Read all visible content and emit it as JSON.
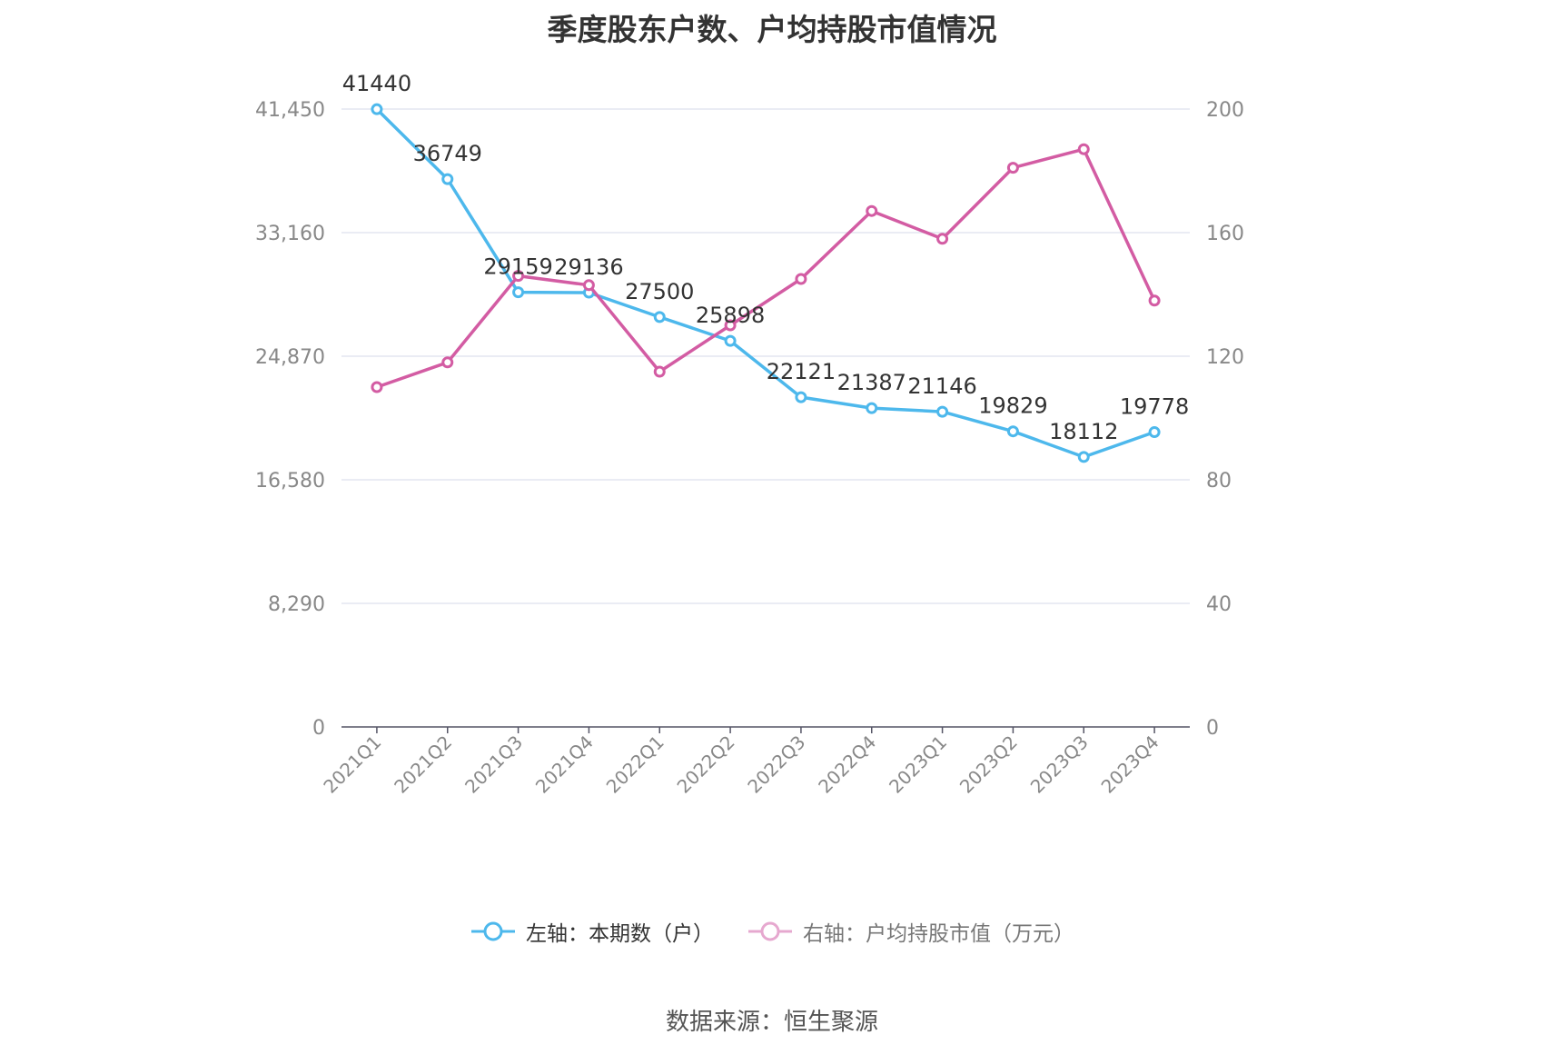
{
  "chart_data": {
    "type": "line",
    "title": "季度股东户数、户均持股市值情况",
    "categories": [
      "2021Q1",
      "2021Q2",
      "2021Q3",
      "2021Q4",
      "2022Q1",
      "2022Q2",
      "2022Q3",
      "2022Q4",
      "2023Q1",
      "2023Q2",
      "2023Q3",
      "2023Q4"
    ],
    "left_axis": {
      "ticks": [
        "0",
        "8,290",
        "16,580",
        "24,870",
        "33,160",
        "41,450"
      ],
      "ylim": [
        0,
        41450
      ]
    },
    "right_axis": {
      "ticks": [
        "0",
        "40",
        "80",
        "120",
        "160",
        "200"
      ],
      "ylim": [
        0,
        200
      ]
    },
    "series": [
      {
        "name": "左轴：本期数（户）",
        "axis": "left",
        "color": "#4db8ec",
        "values": [
          41440,
          36749,
          29159,
          29136,
          27500,
          25898,
          22121,
          21387,
          21146,
          19829,
          18112,
          19778
        ],
        "labels": [
          "41440",
          "36749",
          "29159",
          "29136",
          "27500",
          "25898",
          "22121",
          "21387",
          "21146",
          "19829",
          "18112",
          "19778"
        ]
      },
      {
        "name": "右轴：户均持股市值（万元）",
        "axis": "right",
        "color": "#d35ca3",
        "values": [
          110,
          118,
          146,
          143,
          115,
          130,
          145,
          167,
          158,
          181,
          187,
          138
        ]
      }
    ],
    "grid": true,
    "legend_position": "bottom"
  },
  "source": "数据来源：恒生聚源"
}
